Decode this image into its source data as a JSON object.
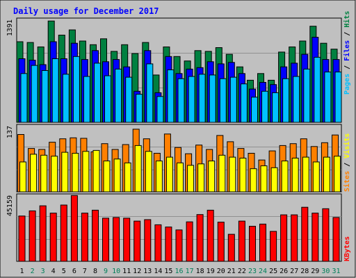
{
  "chart_data": {
    "type": "bar",
    "title": "Daily usage for December 2017",
    "categories": [
      "1",
      "2",
      "3",
      "4",
      "5",
      "6",
      "7",
      "8",
      "9",
      "10",
      "11",
      "12",
      "13",
      "14",
      "15",
      "16",
      "17",
      "18",
      "19",
      "20",
      "21",
      "22",
      "23",
      "24",
      "25",
      "26",
      "27",
      "28",
      "29",
      "30",
      "31"
    ],
    "weekend_days": [
      "2",
      "3",
      "9",
      "10",
      "16",
      "17",
      "23",
      "24",
      "30",
      "31"
    ],
    "panels": [
      {
        "id": "hits",
        "max_label": "1391",
        "ylim": [
          0,
          1391
        ],
        "legend": [
          {
            "label": "Pages",
            "color": "#00c0ff"
          },
          {
            "label": "Files",
            "color": "#0000ff"
          },
          {
            "label": "Hits",
            "color": "#008040"
          }
        ],
        "series": [
          {
            "name": "Hits",
            "color": "#008040",
            "values": [
              1090,
              1080,
              1020,
              1370,
              1180,
              1250,
              1100,
              1050,
              1130,
              960,
              1050,
              930,
              1080,
              640,
              1020,
              890,
              830,
              970,
              960,
              1010,
              920,
              750,
              570,
              660,
              570,
              950,
              1020,
              1100,
              1300,
              1070,
              990
            ]
          },
          {
            "name": "Files",
            "color": "#0000ff",
            "values": [
              860,
              840,
              780,
              1090,
              860,
              1070,
              850,
              970,
              820,
              850,
              750,
              420,
              970,
              400,
              890,
              660,
              720,
              740,
              820,
              790,
              810,
              660,
              450,
              540,
              510,
              750,
              800,
              920,
              1150,
              850,
              850
            ]
          },
          {
            "name": "Pages",
            "color": "#00c0ff",
            "values": [
              660,
              770,
              700,
              860,
              650,
              890,
              620,
              800,
              630,
              720,
              610,
              380,
              790,
              350,
              710,
              590,
              620,
              650,
              640,
              590,
              610,
              520,
              340,
              420,
              400,
              590,
              620,
              720,
              880,
              680,
              680
            ]
          }
        ]
      },
      {
        "id": "visits",
        "max_label": "137",
        "ylim": [
          0,
          137
        ],
        "legend": [
          {
            "label": "Sites",
            "color": "#ff8000"
          },
          {
            "label": "Visits",
            "color": "#ffff00"
          }
        ],
        "series": [
          {
            "name": "Visits",
            "color": "#ff8000",
            "values": [
              119,
              90,
              88,
              103,
              110,
              112,
              111,
              83,
              100,
              88,
              98,
              130,
              110,
              80,
              120,
              92,
              79,
              97,
              88,
              117,
              104,
              90,
              80,
              66,
              85,
              96,
              100,
              110,
              94,
              102,
              118
            ]
          },
          {
            "name": "Sites",
            "color": "#ffff00",
            "values": [
              62,
              78,
              76,
              74,
              82,
              80,
              84,
              86,
              64,
              68,
              60,
              96,
              84,
              64,
              72,
              60,
              55,
              58,
              64,
              76,
              72,
              70,
              48,
              54,
              50,
              64,
              70,
              72,
              62,
              72,
              74
            ]
          }
        ]
      },
      {
        "id": "kbytes",
        "max_label": "45159",
        "ylim": [
          0,
          45159
        ],
        "legend": [
          {
            "label": "KBytes",
            "color": "#ff0000"
          }
        ],
        "series": [
          {
            "name": "KBytes",
            "color": "#ff0000",
            "values": [
              31000,
              34500,
              38000,
              33000,
              38500,
              45000,
              33000,
              35000,
              29500,
              30000,
              29500,
              27500,
              28500,
              25000,
              23500,
              21500,
              27000,
              32000,
              35000,
              26800,
              18500,
              27500,
              24000,
              25500,
              20500,
              31800,
              31800,
              37000,
              33000,
              36000,
              30000
            ]
          }
        ]
      }
    ]
  }
}
